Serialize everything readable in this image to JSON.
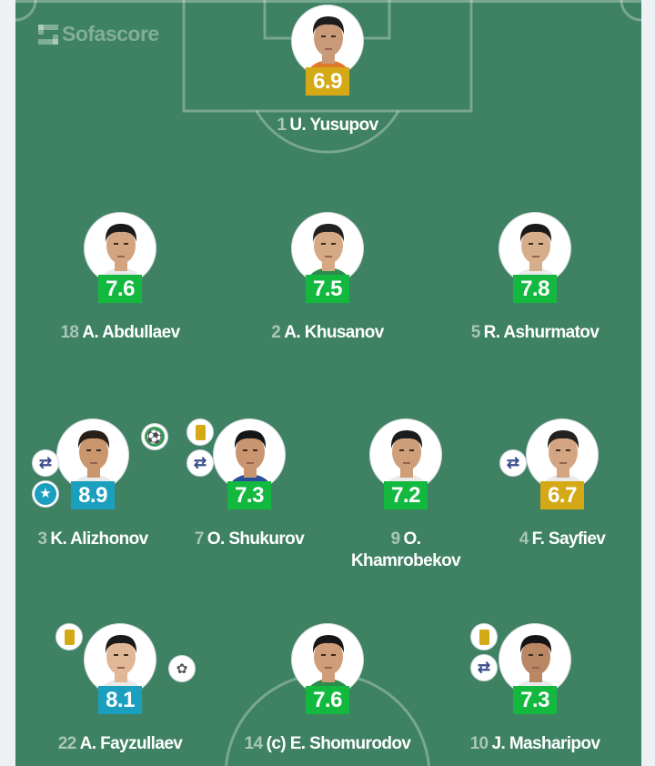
{
  "brand": "Sofascore",
  "colors": {
    "pitch": "#3e8163",
    "rating_green": "#13b83f",
    "rating_blue": "#1a9fbf",
    "rating_gold": "#d4a915"
  },
  "players": [
    {
      "number": "1",
      "name": "U. Yusupov",
      "rating": "6.9",
      "rating_color": "#d4a915",
      "badges": []
    },
    {
      "number": "18",
      "name": "A. Abdullaev",
      "rating": "7.6",
      "rating_color": "#13b83f",
      "badges": []
    },
    {
      "number": "2",
      "name": "A. Khusanov",
      "rating": "7.5",
      "rating_color": "#13b83f",
      "badges": []
    },
    {
      "number": "5",
      "name": "R. Ashurmatov",
      "rating": "7.8",
      "rating_color": "#13b83f",
      "badges": []
    },
    {
      "number": "3",
      "name": "K. Alizhonov",
      "rating": "8.9",
      "rating_color": "#1a9fbf",
      "badges": [
        "goal-icon",
        "substitution-icon",
        "player-of-the-match-star-icon"
      ]
    },
    {
      "number": "7",
      "name": "O. Shukurov",
      "rating": "7.3",
      "rating_color": "#13b83f",
      "badges": [
        "yellow-card-icon",
        "substitution-icon"
      ]
    },
    {
      "number": "9",
      "name": "O. Khamrobekov",
      "rating": "7.2",
      "rating_color": "#13b83f",
      "badges": []
    },
    {
      "number": "4",
      "name": "F. Sayfiev",
      "rating": "6.7",
      "rating_color": "#d4a915",
      "badges": [
        "substitution-icon"
      ]
    },
    {
      "number": "22",
      "name": "A. Fayzullaev",
      "rating": "8.1",
      "rating_color": "#1a9fbf",
      "badges": [
        "yellow-card-icon",
        "assist-boot-icon"
      ]
    },
    {
      "number": "14",
      "name": "(c) E. Shomurodov",
      "rating": "7.6",
      "rating_color": "#13b83f",
      "badges": []
    },
    {
      "number": "10",
      "name": "J. Masharipov",
      "rating": "7.3",
      "rating_color": "#13b83f",
      "badges": [
        "yellow-card-icon",
        "substitution-icon"
      ]
    }
  ]
}
